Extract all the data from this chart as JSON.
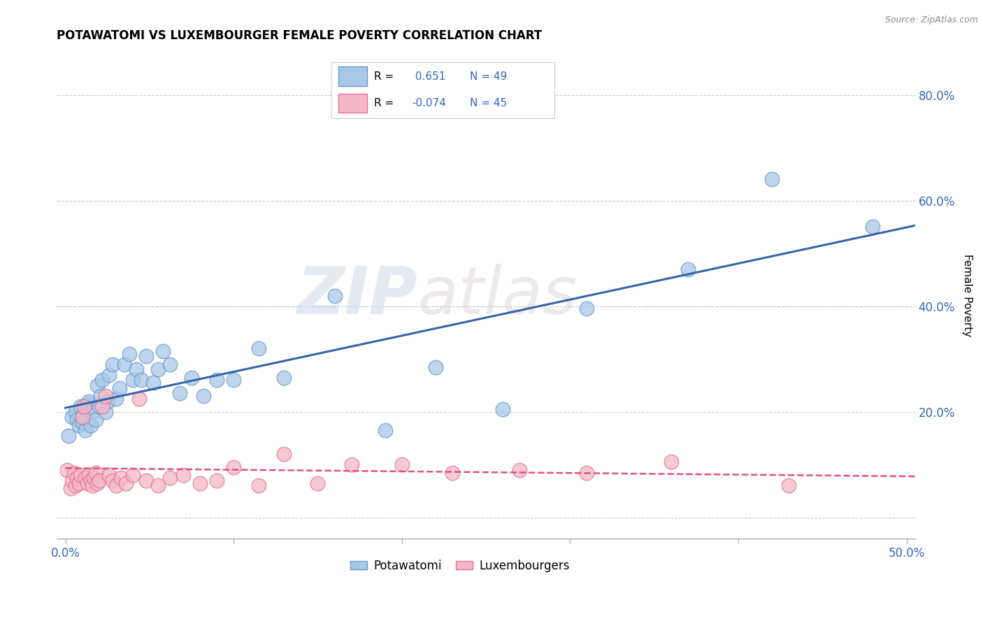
{
  "title": "POTAWATOMI VS LUXEMBOURGER FEMALE POVERTY CORRELATION CHART",
  "source": "Source: ZipAtlas.com",
  "ylabel": "Female Poverty",
  "xlim": [
    -0.005,
    0.505
  ],
  "ylim": [
    -0.04,
    0.88
  ],
  "xticks": [
    0.0,
    0.1,
    0.2,
    0.3,
    0.4,
    0.5
  ],
  "xtick_labels_show": [
    "0.0%",
    "",
    "",
    "",
    "",
    "50.0%"
  ],
  "yticks": [
    0.0,
    0.2,
    0.4,
    0.6,
    0.8
  ],
  "ytick_labels": [
    "",
    "20.0%",
    "40.0%",
    "60.0%",
    "80.0%"
  ],
  "blue_scatter_color": "#a8c8e8",
  "blue_scatter_edge": "#6699cc",
  "pink_scatter_color": "#f5b8c8",
  "pink_scatter_edge": "#e07090",
  "blue_line_color": "#3366aa",
  "pink_line_color": "#e05080",
  "R_blue": 0.651,
  "N_blue": 49,
  "R_pink": -0.074,
  "N_pink": 45,
  "watermark_zip": "ZIP",
  "watermark_atlas": "atlas",
  "legend_label_blue": "Potawatomi",
  "legend_label_pink": "Luxembourgers",
  "potawatomi_x": [
    0.002,
    0.004,
    0.006,
    0.007,
    0.008,
    0.009,
    0.01,
    0.011,
    0.012,
    0.013,
    0.014,
    0.015,
    0.016,
    0.018,
    0.019,
    0.02,
    0.021,
    0.022,
    0.024,
    0.025,
    0.026,
    0.028,
    0.03,
    0.032,
    0.035,
    0.038,
    0.04,
    0.042,
    0.045,
    0.048,
    0.052,
    0.055,
    0.058,
    0.062,
    0.068,
    0.075,
    0.082,
    0.09,
    0.1,
    0.115,
    0.13,
    0.16,
    0.19,
    0.22,
    0.26,
    0.31,
    0.37,
    0.42,
    0.48
  ],
  "potawatomi_y": [
    0.155,
    0.19,
    0.2,
    0.185,
    0.175,
    0.21,
    0.18,
    0.195,
    0.165,
    0.215,
    0.22,
    0.175,
    0.2,
    0.185,
    0.25,
    0.21,
    0.23,
    0.26,
    0.2,
    0.22,
    0.27,
    0.29,
    0.225,
    0.245,
    0.29,
    0.31,
    0.26,
    0.28,
    0.26,
    0.305,
    0.255,
    0.28,
    0.315,
    0.29,
    0.235,
    0.265,
    0.23,
    0.26,
    0.26,
    0.32,
    0.265,
    0.42,
    0.165,
    0.285,
    0.205,
    0.395,
    0.47,
    0.64,
    0.55
  ],
  "luxembourger_x": [
    0.001,
    0.003,
    0.004,
    0.005,
    0.006,
    0.007,
    0.008,
    0.009,
    0.01,
    0.011,
    0.012,
    0.013,
    0.014,
    0.015,
    0.016,
    0.017,
    0.018,
    0.019,
    0.02,
    0.022,
    0.024,
    0.026,
    0.028,
    0.03,
    0.033,
    0.036,
    0.04,
    0.044,
    0.048,
    0.055,
    0.062,
    0.07,
    0.08,
    0.09,
    0.1,
    0.115,
    0.13,
    0.15,
    0.17,
    0.2,
    0.23,
    0.27,
    0.31,
    0.36,
    0.43
  ],
  "luxembourger_y": [
    0.09,
    0.055,
    0.07,
    0.085,
    0.06,
    0.075,
    0.065,
    0.08,
    0.19,
    0.21,
    0.075,
    0.065,
    0.08,
    0.07,
    0.06,
    0.075,
    0.085,
    0.065,
    0.07,
    0.21,
    0.23,
    0.08,
    0.07,
    0.06,
    0.075,
    0.065,
    0.08,
    0.225,
    0.07,
    0.06,
    0.075,
    0.08,
    0.065,
    0.07,
    0.095,
    0.06,
    0.12,
    0.065,
    0.1,
    0.1,
    0.085,
    0.09,
    0.085,
    0.105,
    0.06
  ]
}
